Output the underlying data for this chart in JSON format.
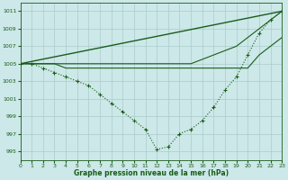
{
  "background_color": "#cce8e8",
  "grid_color": "#aacccc",
  "line_color": "#1a5c1a",
  "title": "Graphe pression niveau de la mer (hPa)",
  "ylim": [
    994.0,
    1012.0
  ],
  "xlim": [
    0,
    23
  ],
  "yticks": [
    995,
    997,
    999,
    1001,
    1003,
    1005,
    1007,
    1009,
    1011
  ],
  "xticks": [
    0,
    1,
    2,
    3,
    4,
    5,
    6,
    7,
    8,
    9,
    10,
    11,
    12,
    13,
    14,
    15,
    16,
    17,
    18,
    19,
    20,
    21,
    22,
    23
  ],
  "series": [
    {
      "x": [
        0,
        23
      ],
      "y": [
        1005.0,
        1011.0
      ],
      "style": "-",
      "marker": null,
      "linewidth": 1.0
    },
    {
      "x": [
        0,
        1,
        2,
        3,
        4,
        5,
        6,
        7,
        8,
        9,
        10,
        11,
        12,
        13,
        14,
        15,
        16,
        17,
        18,
        19,
        20,
        21,
        22,
        23
      ],
      "y": [
        1005,
        1005,
        1005,
        1005,
        1005,
        1005,
        1005,
        1005,
        1005,
        1005,
        1005,
        1005,
        1005,
        1005,
        1005,
        1005,
        1005.5,
        1006,
        1006.5,
        1007,
        1008,
        1009,
        1010,
        1011
      ],
      "style": "-",
      "marker": null,
      "linewidth": 0.8
    },
    {
      "x": [
        0,
        1,
        2,
        3,
        4,
        5,
        6,
        7,
        8,
        9,
        10,
        11,
        12,
        13,
        14,
        15,
        16,
        17,
        18,
        19,
        20,
        21,
        22,
        23
      ],
      "y": [
        1005,
        1005,
        1005,
        1005,
        1004.5,
        1004.5,
        1004.5,
        1004.5,
        1004.5,
        1004.5,
        1004.5,
        1004.5,
        1004.5,
        1004.5,
        1004.5,
        1004.5,
        1004.5,
        1004.5,
        1004.5,
        1004.5,
        1004.5,
        1006,
        1007,
        1008
      ],
      "style": "-",
      "marker": null,
      "linewidth": 0.8
    },
    {
      "x": [
        0,
        1,
        2,
        3,
        4,
        5,
        6,
        7,
        8,
        9,
        10,
        11,
        12,
        13,
        14,
        15,
        16,
        17,
        18,
        19,
        20,
        21,
        22,
        23
      ],
      "y": [
        1005,
        1005,
        1004.5,
        1004.0,
        1003.5,
        1003.0,
        1002.5,
        1001.5,
        1000.5,
        999.5,
        998.5,
        997.5,
        995.2,
        995.5,
        997.0,
        997.5,
        998.5,
        1000.0,
        1002.0,
        1003.5,
        1006.0,
        1008.5,
        1010.0,
        1011.0
      ],
      "style": ":",
      "marker": "+",
      "markersize": 3.5,
      "linewidth": 0.8
    }
  ]
}
